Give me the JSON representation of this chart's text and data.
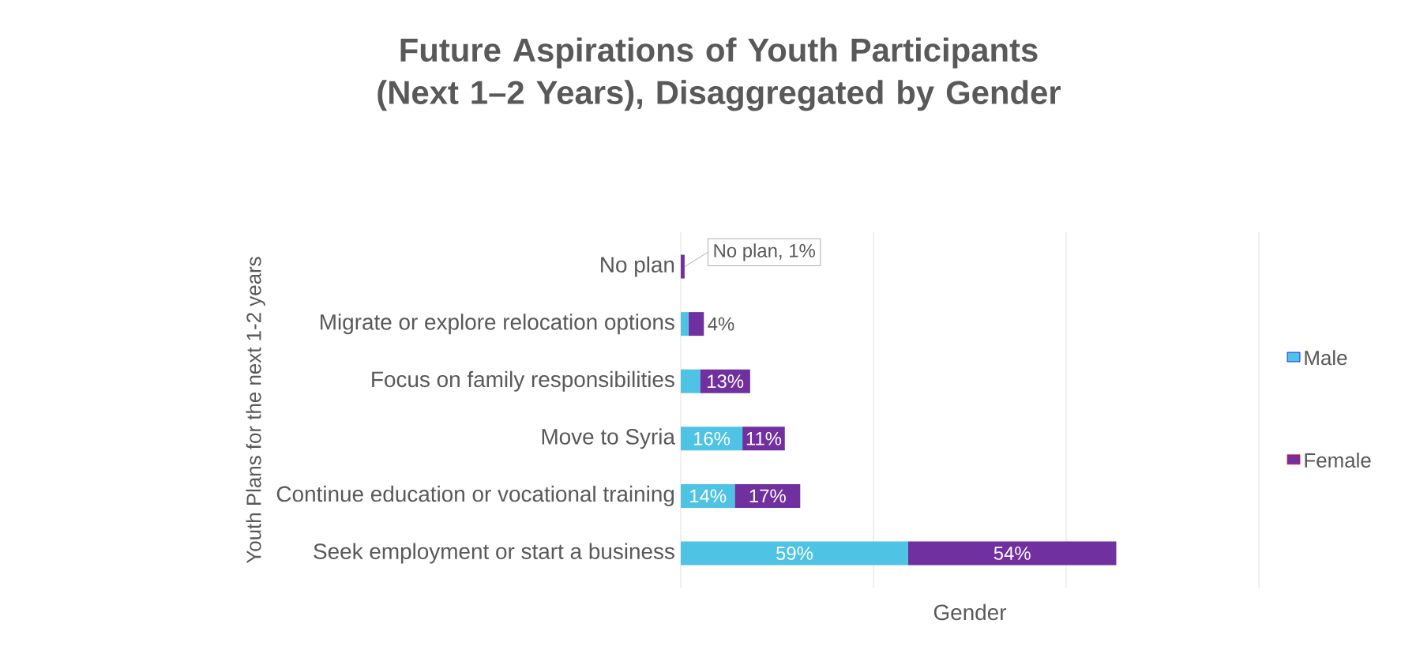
{
  "chart_data": {
    "type": "bar",
    "orientation": "horizontal",
    "stacked": true,
    "title": "Future Aspirations of Youth Participants (Next 1–2 Years), Disaggregated by Gender",
    "xlabel": "Gender",
    "ylabel": "Youth Plans for the next 1-2 years",
    "categories": [
      "No plan",
      "Migrate or explore relocation options",
      "Focus on family responsibilities",
      "Move to Syria",
      "Continue education or vocational training",
      "Seek employment or start a business"
    ],
    "series": [
      {
        "name": "Male",
        "color": "#4ec3e4",
        "values": [
          0,
          2,
          5,
          16,
          14,
          59
        ],
        "value_labels": [
          null,
          null,
          null,
          "16%",
          "14%",
          "59%"
        ]
      },
      {
        "name": "Female",
        "color": "#7030a0",
        "values": [
          1,
          4,
          13,
          11,
          17,
          54
        ],
        "value_labels": [
          "No plan, 1%",
          "4%",
          "13%",
          "11%",
          "17%",
          "54%"
        ]
      }
    ],
    "xlim": [
      0,
      150
    ],
    "xticks": [
      {
        "value": 0,
        "label": null
      },
      {
        "value": 50,
        "label": null
      },
      {
        "value": 100,
        "label": null
      },
      {
        "value": 150,
        "label": null
      }
    ],
    "grid": "x",
    "tick_labels": "y",
    "legend": "right"
  }
}
